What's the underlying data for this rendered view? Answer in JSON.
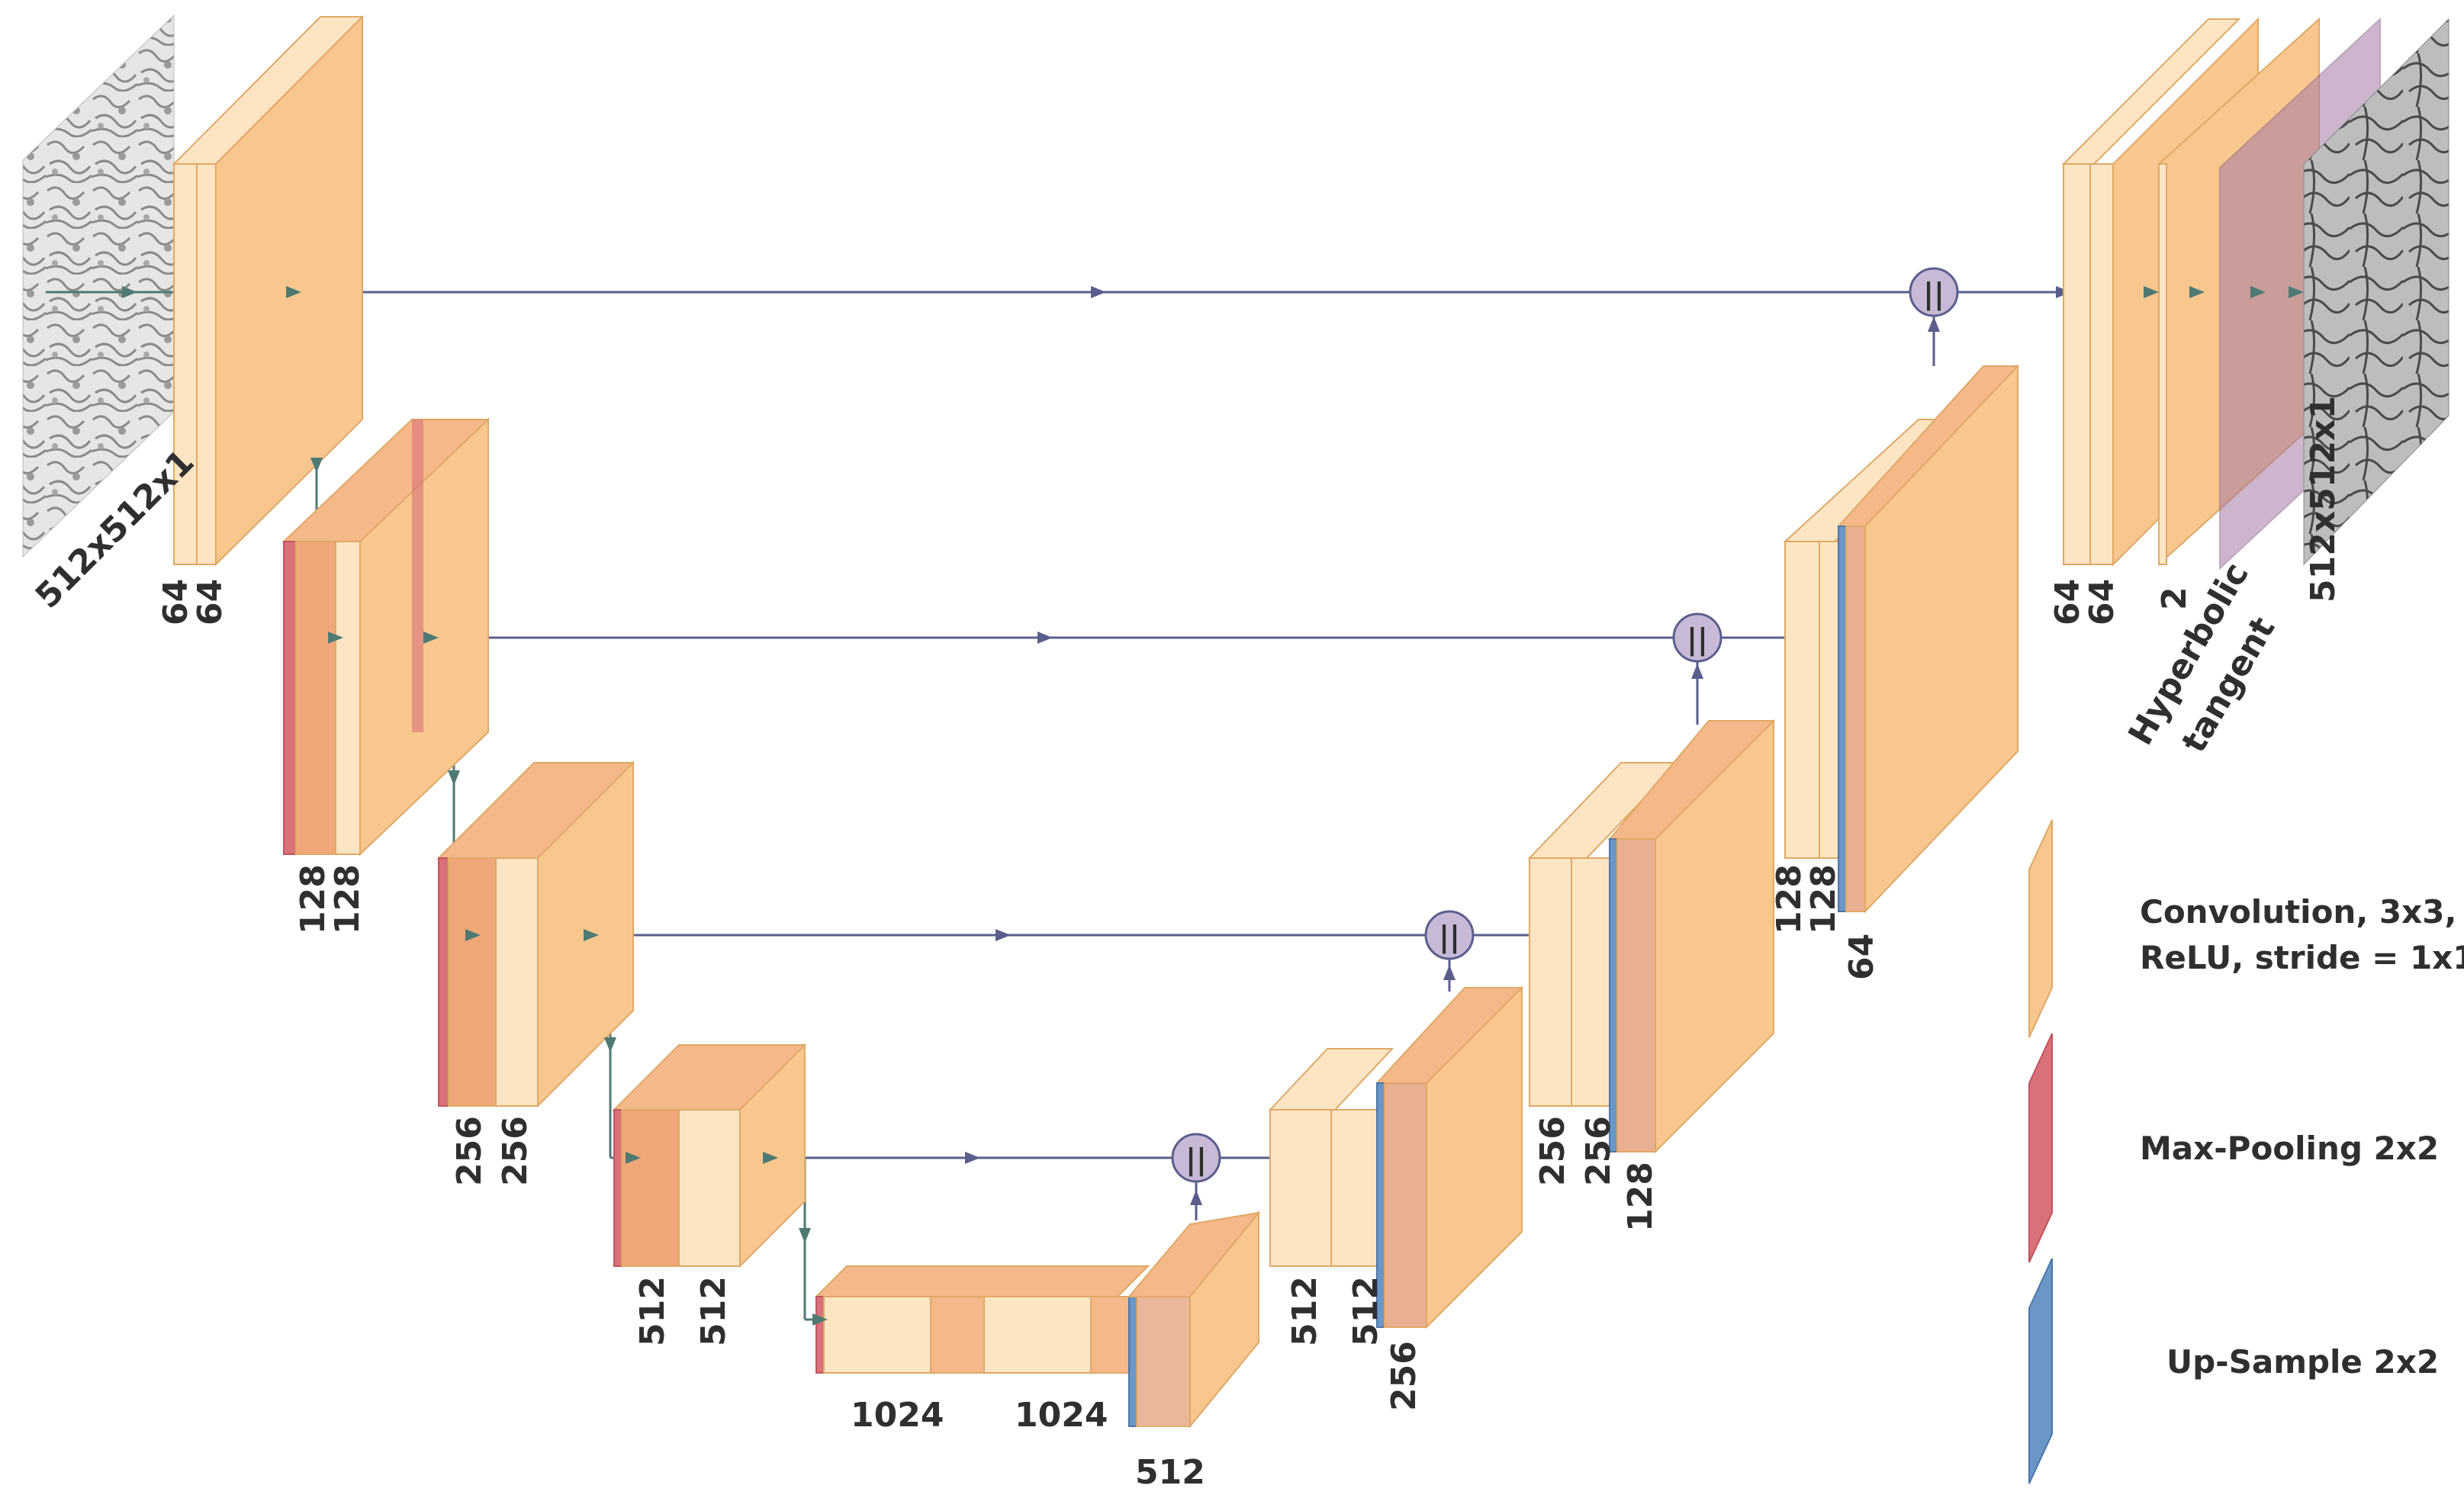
{
  "colors": {
    "conv": "#f8c78e",
    "conv_light": "#fde5c4",
    "pool": "#d9707a",
    "up": "#6a96c8",
    "tanh": "#a57aa5",
    "arrow_main": "#5b5e8c",
    "arrow_down": "#4f7a73",
    "concat_fill": "#c8bad6"
  },
  "input_label": "512x512x1",
  "output_label": "512x512x1",
  "concat_symbol": "||",
  "labels": {
    "enc1": [
      "64",
      "64"
    ],
    "enc2": [
      "128",
      "128"
    ],
    "enc3": [
      "256",
      "256"
    ],
    "enc4": [
      "512",
      "512"
    ],
    "bottleneck": [
      "1024",
      "1024"
    ],
    "up4": "512",
    "dec4": [
      "512",
      "512"
    ],
    "up3": "256",
    "dec3": [
      "256",
      "256"
    ],
    "up2": "128",
    "dec2": [
      "128",
      "128"
    ],
    "up1": "64",
    "dec1": [
      "64",
      "64"
    ],
    "final": "2",
    "activation_line1": "Hyperbolic",
    "activation_line2": "tangent"
  },
  "legend": {
    "conv_line1": "Convolution, 3x3,",
    "conv_line2": "ReLU, stride = 1x1",
    "pool": "Max-Pooling 2x2",
    "up": "Up-Sample 2x2"
  }
}
